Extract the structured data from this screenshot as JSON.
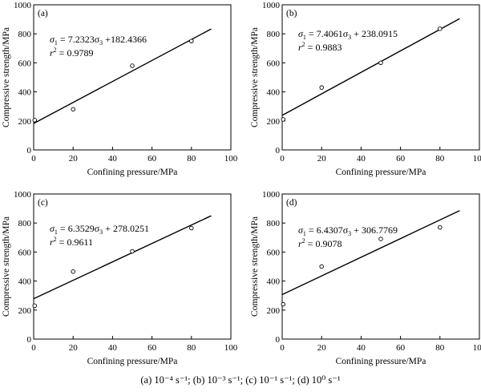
{
  "chart_data": [
    {
      "type": "scatter",
      "panel": "(a)",
      "xlabel": "Confining pressure/MPa",
      "ylabel": "Compressive strength/MPa",
      "xlim": [
        0,
        100
      ],
      "ylim": [
        0,
        1000
      ],
      "xticks": [
        0,
        20,
        40,
        60,
        80,
        100
      ],
      "yticks": [
        0,
        200,
        400,
        600,
        800,
        1000
      ],
      "grid": false,
      "points": {
        "x": [
          0.5,
          20,
          50,
          80
        ],
        "y": [
          205,
          280,
          580,
          750
        ]
      },
      "fit": {
        "slope": 7.2323,
        "intercept": 182.4366,
        "x_range": [
          0,
          90
        ]
      },
      "equation_lhs": "σ",
      "equation_lhs_sub": "1",
      "equation_rhs_a": " = 7.2323σ",
      "equation_rhs_sub": "3",
      "equation_rhs_b": " +182.4366",
      "r2_label": "r",
      "r2_sup": "2",
      "r2_value": " = 0.9789"
    },
    {
      "type": "scatter",
      "panel": "(b)",
      "xlabel": "Confining pressure/MPa",
      "ylabel": "Compressive strength/MPa",
      "xlim": [
        0,
        100
      ],
      "ylim": [
        0,
        1000
      ],
      "xticks": [
        0,
        20,
        40,
        60,
        80,
        100
      ],
      "yticks": [
        0,
        200,
        400,
        600,
        800,
        1000
      ],
      "grid": false,
      "points": {
        "x": [
          0.5,
          20,
          50,
          80
        ],
        "y": [
          210,
          430,
          600,
          835
        ]
      },
      "fit": {
        "slope": 7.4061,
        "intercept": 238.0915,
        "x_range": [
          0,
          90
        ]
      },
      "equation_lhs": "σ",
      "equation_lhs_sub": "1",
      "equation_rhs_a": " = 7.4061σ",
      "equation_rhs_sub": "3",
      "equation_rhs_b": " + 238.0915",
      "r2_label": "r",
      "r2_sup": "2",
      "r2_value": " = 0.9883"
    },
    {
      "type": "scatter",
      "panel": "(c)",
      "xlabel": "Confining pressure/MPa",
      "ylabel": "Compressive strength/MPa",
      "xlim": [
        0,
        100
      ],
      "ylim": [
        0,
        1000
      ],
      "xticks": [
        0,
        20,
        40,
        60,
        80,
        100
      ],
      "yticks": [
        0,
        200,
        400,
        600,
        800,
        1000
      ],
      "grid": false,
      "points": {
        "x": [
          0.5,
          20,
          50,
          80
        ],
        "y": [
          230,
          465,
          605,
          765
        ]
      },
      "fit": {
        "slope": 6.3529,
        "intercept": 278.0251,
        "x_range": [
          0,
          90
        ]
      },
      "equation_lhs": "σ",
      "equation_lhs_sub": "1",
      "equation_rhs_a": " = 6.3529σ",
      "equation_rhs_sub": "3",
      "equation_rhs_b": " + 278.0251",
      "r2_label": "r",
      "r2_sup": "2",
      "r2_value": " = 0.9611"
    },
    {
      "type": "scatter",
      "panel": "(d)",
      "xlabel": "Confining pressure/MPa",
      "ylabel": "Compressive strength/MPa",
      "xlim": [
        0,
        100
      ],
      "ylim": [
        0,
        1000
      ],
      "xticks": [
        0,
        20,
        40,
        60,
        80,
        100
      ],
      "yticks": [
        0,
        200,
        400,
        600,
        800,
        1000
      ],
      "grid": false,
      "points": {
        "x": [
          0.5,
          20,
          50,
          80
        ],
        "y": [
          240,
          500,
          690,
          770
        ]
      },
      "fit": {
        "slope": 6.4307,
        "intercept": 306.7769,
        "x_range": [
          0,
          90
        ]
      },
      "equation_lhs": "σ",
      "equation_lhs_sub": "1",
      "equation_rhs_a": " = 6.4307σ",
      "equation_rhs_sub": "3",
      "equation_rhs_b": " + 306.7769",
      "r2_label": "r",
      "r2_sup": "2",
      "r2_value": " = 0.9078"
    }
  ],
  "caption": "(a)  10⁻⁴ s⁻¹;  (b)  10⁻³ s⁻¹;  (c)  10⁻¹ s⁻¹;  (d)  10⁰ s⁻¹"
}
